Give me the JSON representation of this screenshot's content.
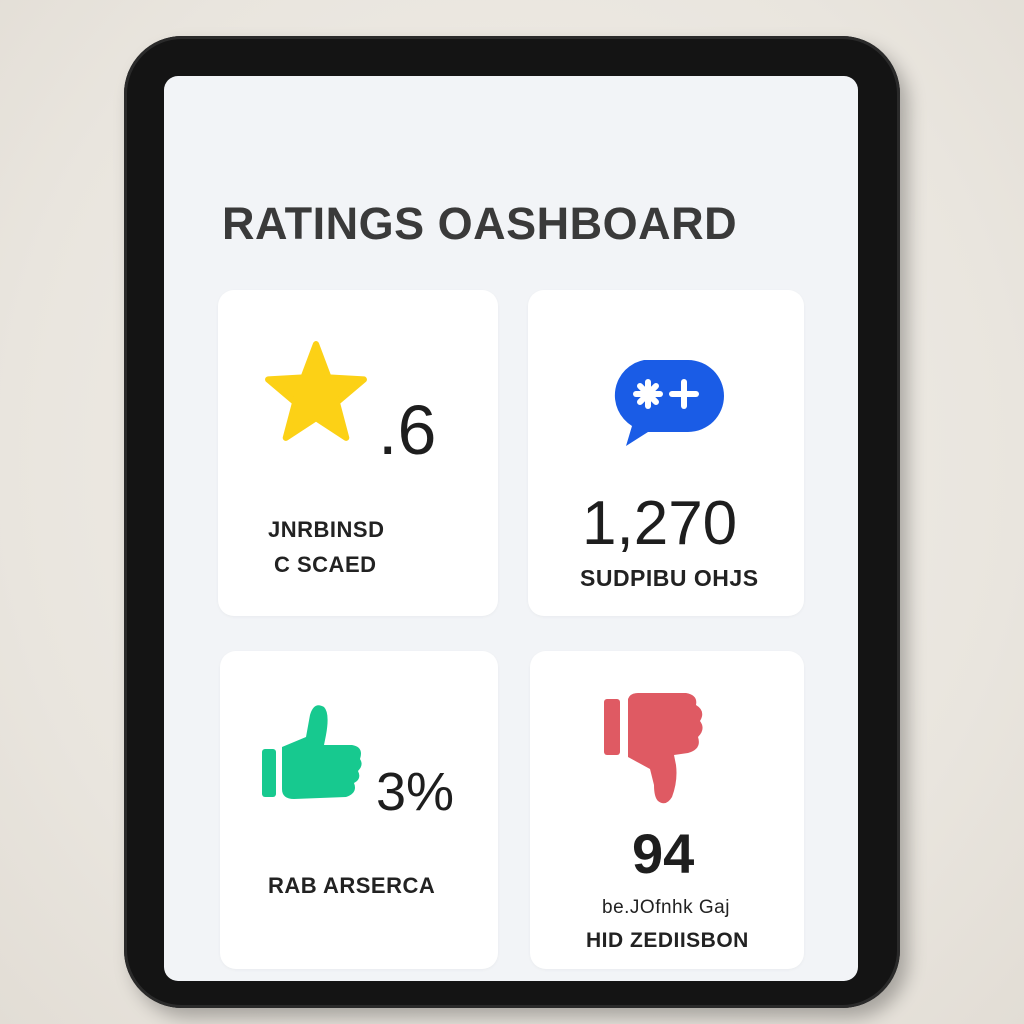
{
  "dashboard": {
    "title": "RATINGS OASHBOARD"
  },
  "cards": {
    "rating": {
      "icon": "star-icon",
      "icon_color": "#fcd116",
      "value": ".6",
      "label_line1": "JNRBINSD",
      "label_line2": "C SCAED"
    },
    "reviews": {
      "icon": "chat-bubble-icon",
      "icon_color": "#1a5ce6",
      "value": "1,270",
      "label": "SUDPIBU OHJS"
    },
    "positive": {
      "icon": "thumbs-up-icon",
      "icon_color": "#17c98f",
      "value": "3%",
      "label": "RAB ARSERCA"
    },
    "negative": {
      "icon": "thumbs-down-icon",
      "icon_color": "#df5a63",
      "value": "94",
      "label_line1": "be.JOfnhk Gaj",
      "label_line2": "HID ZEDIISBON"
    }
  }
}
